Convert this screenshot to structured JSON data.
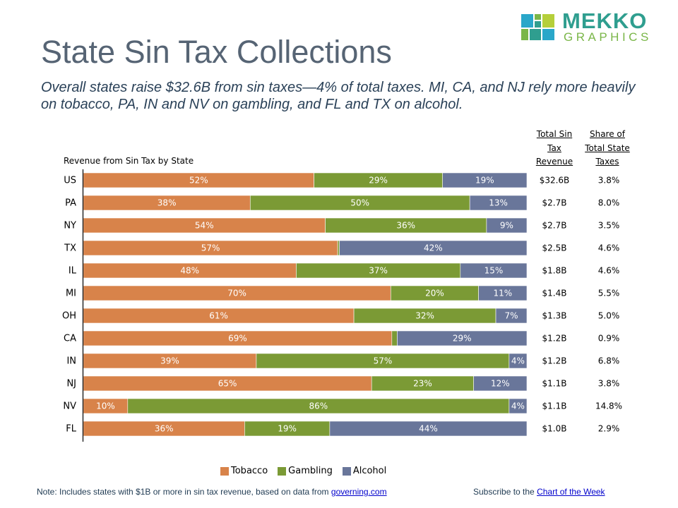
{
  "logo": {
    "text_top": "MEKKO",
    "text_bottom": "GRAPHICS"
  },
  "title": "State Sin Tax Collections",
  "subtitle": "Overall states raise $32.6B from sin taxes—4% of total taxes.  MI, CA, and NJ rely more heavily on tobacco, PA, IN and NV on gambling, and FL and TX on alcohol.",
  "columns": {
    "total_header": "Total Sin Tax Revenue",
    "share_header": "Share of Total State Taxes"
  },
  "legend": [
    {
      "label": "Tobacco",
      "color": "#d8834a"
    },
    {
      "label": "Gambling",
      "color": "#7b9a35"
    },
    {
      "label": "Alcohol",
      "color": "#69769a"
    }
  ],
  "footnote": {
    "text": "Note: Includes states with $1B or more in sin tax revenue, based on data from ",
    "link": "governing.com"
  },
  "subscribe": {
    "text": "Subscribe to the ",
    "link": "Chart of the Week"
  },
  "chart_data": {
    "type": "bar",
    "orientation": "horizontal",
    "stacked": "100%",
    "title": "Revenue from Sin Tax by State",
    "categories": [
      "US",
      "PA",
      "NY",
      "TX",
      "IL",
      "MI",
      "OH",
      "CA",
      "IN",
      "NJ",
      "NV",
      "FL"
    ],
    "series": [
      {
        "name": "Tobacco",
        "color": "#d8834a",
        "values": [
          52,
          38,
          54,
          57,
          48,
          70,
          61,
          69,
          39,
          65,
          10,
          36
        ],
        "labels": [
          "52%",
          "38%",
          "54%",
          "57%",
          "48%",
          "70%",
          "61%",
          "69%",
          "39%",
          "65%",
          "10%",
          "36%"
        ]
      },
      {
        "name": "Gambling",
        "color": "#7b9a35",
        "values": [
          29,
          50,
          36,
          0.4,
          37,
          20,
          32,
          1.2,
          57,
          23,
          86,
          19
        ],
        "labels": [
          "29%",
          "50%",
          "36%",
          "",
          "37%",
          "20%",
          "32%",
          "",
          "57%",
          "23%",
          "86%",
          "19%"
        ]
      },
      {
        "name": "Alcohol",
        "color": "#69769a",
        "values": [
          19,
          13,
          9,
          42,
          15,
          11,
          7,
          29,
          4,
          12,
          4,
          44
        ],
        "labels": [
          "19%",
          "13%",
          "9%",
          "42%",
          "15%",
          "11%",
          "7%",
          "29%",
          "4%",
          "12%",
          "4%",
          "44%"
        ]
      }
    ],
    "total_revenue": [
      "$32.6B",
      "$2.7B",
      "$2.7B",
      "$2.5B",
      "$1.8B",
      "$1.4B",
      "$1.3B",
      "$1.2B",
      "$1.2B",
      "$1.1B",
      "$1.1B",
      "$1.0B"
    ],
    "share_of_taxes": [
      "3.8%",
      "8.0%",
      "3.5%",
      "4.6%",
      "4.6%",
      "5.5%",
      "5.0%",
      "0.9%",
      "6.8%",
      "3.8%",
      "14.8%",
      "2.9%"
    ],
    "legend_position": "bottom"
  }
}
